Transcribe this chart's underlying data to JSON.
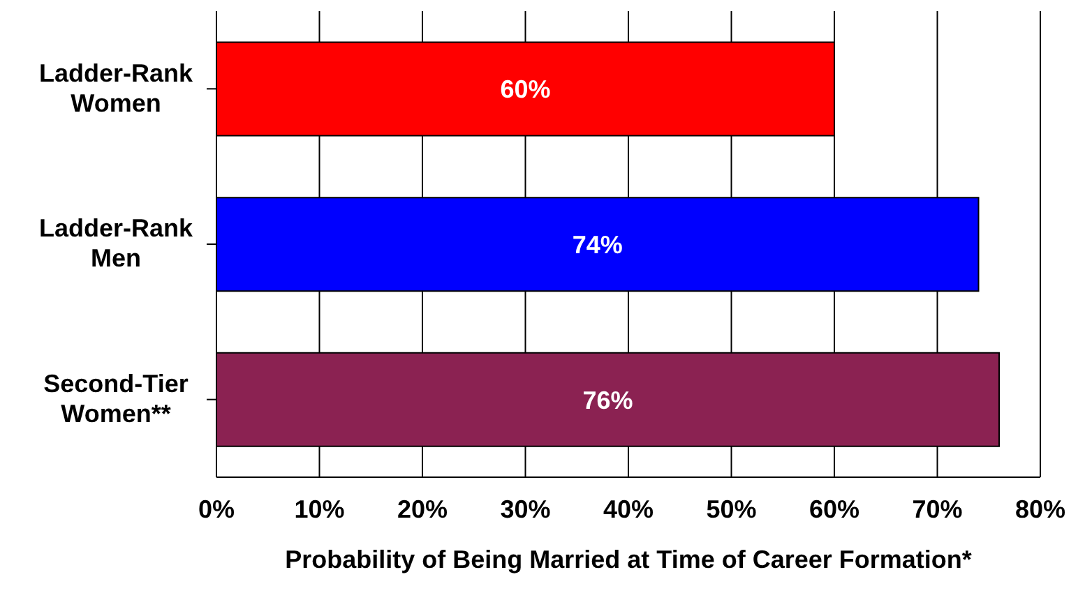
{
  "chart_data": {
    "type": "bar",
    "orientation": "horizontal",
    "xlabel": "Probability of Being Married at Time of Career Formation*",
    "categories": [
      "Ladder-Rank Women",
      "Ladder-Rank Men",
      "Second-Tier Women**"
    ],
    "values": [
      60,
      74,
      76
    ],
    "colors": [
      "#ff0000",
      "#0000ff",
      "#8b2252"
    ],
    "value_labels": [
      "60%",
      "74%",
      "76%"
    ],
    "xlim": [
      0,
      80
    ],
    "xticks": [
      {
        "value": 0,
        "label": "0%"
      },
      {
        "value": 10,
        "label": "10%"
      },
      {
        "value": 20,
        "label": "20%"
      },
      {
        "value": 30,
        "label": "30%"
      },
      {
        "value": 40,
        "label": "40%"
      },
      {
        "value": 50,
        "label": "50%"
      },
      {
        "value": 60,
        "label": "60%"
      },
      {
        "value": 70,
        "label": "70%"
      },
      {
        "value": 80,
        "label": "80%"
      }
    ],
    "grid": "x",
    "legend": false
  }
}
